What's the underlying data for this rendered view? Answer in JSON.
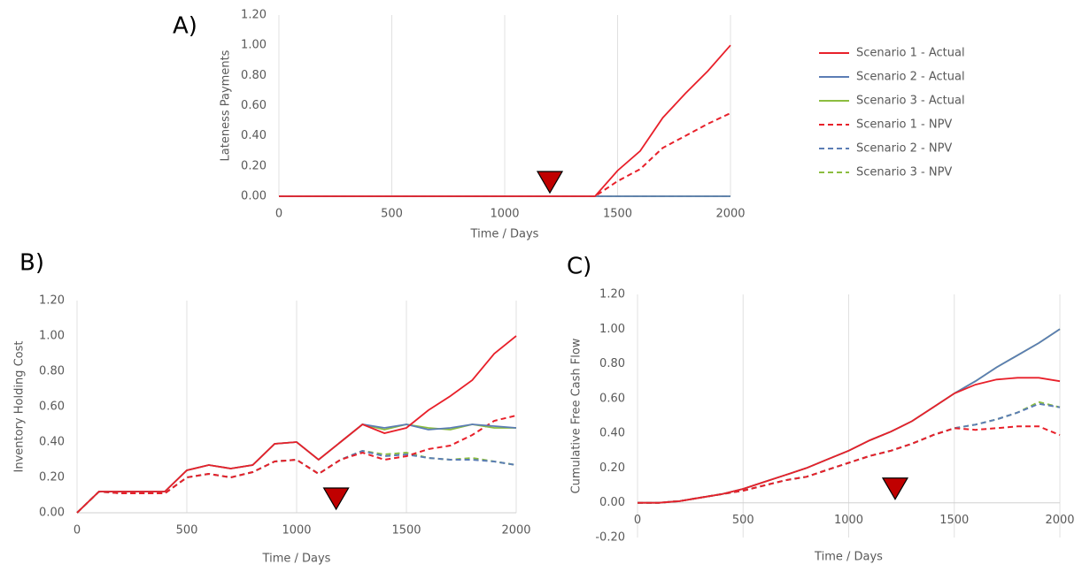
{
  "chart_data": [
    {
      "type": "line",
      "title": "A)",
      "x_label": "Time / Days",
      "y_label": "Lateness Payments",
      "x": [
        0,
        100,
        200,
        300,
        400,
        500,
        600,
        700,
        800,
        900,
        1000,
        1100,
        1200,
        1300,
        1400,
        1500,
        1600,
        1700,
        1800,
        1900,
        2000
      ],
      "xlim": [
        0,
        2000
      ],
      "xticks": [
        0,
        500,
        1000,
        1500,
        2000
      ],
      "ylim": [
        0,
        1.2
      ],
      "yticks": [
        {
          "value": 0,
          "label": "0.00"
        },
        {
          "value": 0.2,
          "label": "0.20"
        },
        {
          "value": 0.4,
          "label": "0.40"
        },
        {
          "value": 0.6,
          "label": "0.60"
        },
        {
          "value": 0.8,
          "label": "0.80"
        },
        {
          "value": 1.0,
          "label": "1.00"
        },
        {
          "value": 1.2,
          "label": "1.20"
        }
      ],
      "grid": "x",
      "legend": "right",
      "marker_x": 1200,
      "marker_color": "#c00000",
      "series": [
        {
          "name": "Scenario 1 - Actual",
          "color": "#e8202a",
          "dash": false,
          "values": [
            0,
            0,
            0,
            0,
            0,
            0,
            0,
            0,
            0,
            0,
            0,
            0,
            0,
            0,
            0,
            0.17,
            0.3,
            0.52,
            0.68,
            0.83,
            1.0
          ]
        },
        {
          "name": "Scenario 2 - Actual",
          "color": "#5b7db5",
          "dash": false,
          "values": [
            0,
            0,
            0,
            0,
            0,
            0,
            0,
            0,
            0,
            0,
            0,
            0,
            0,
            0,
            0,
            0,
            0,
            0,
            0,
            0,
            0
          ]
        },
        {
          "name": "Scenario 3 - Actual",
          "color": "#8cbd3f",
          "dash": false,
          "values": [
            0,
            0,
            0,
            0,
            0,
            0,
            0,
            0,
            0,
            0,
            0,
            0,
            0,
            0,
            0,
            0,
            0,
            0,
            0,
            0,
            0
          ]
        },
        {
          "name": "Scenario 1 - NPV",
          "color": "#e8202a",
          "dash": true,
          "values": [
            0,
            0,
            0,
            0,
            0,
            0,
            0,
            0,
            0,
            0,
            0,
            0,
            0,
            0,
            0,
            0.1,
            0.18,
            0.32,
            0.4,
            0.48,
            0.55
          ]
        },
        {
          "name": "Scenario 2 - NPV",
          "color": "#5b7db5",
          "dash": true,
          "values": [
            0,
            0,
            0,
            0,
            0,
            0,
            0,
            0,
            0,
            0,
            0,
            0,
            0,
            0,
            0,
            0,
            0,
            0,
            0,
            0,
            0
          ]
        },
        {
          "name": "Scenario 3 - NPV",
          "color": "#8cbd3f",
          "dash": true,
          "values": [
            0,
            0,
            0,
            0,
            0,
            0,
            0,
            0,
            0,
            0,
            0,
            0,
            0,
            0,
            0,
            0,
            0,
            0,
            0,
            0,
            0
          ]
        }
      ]
    },
    {
      "type": "line",
      "title": "B)",
      "x_label": "Time / Days",
      "y_label": "Inventory Holding Cost",
      "x": [
        0,
        100,
        200,
        300,
        400,
        500,
        600,
        700,
        800,
        900,
        1000,
        1100,
        1200,
        1300,
        1400,
        1500,
        1600,
        1700,
        1800,
        1900,
        2000
      ],
      "xlim": [
        0,
        2000
      ],
      "xticks": [
        0,
        500,
        1000,
        1500,
        2000
      ],
      "ylim": [
        0,
        1.2
      ],
      "yticks": [
        {
          "value": 0,
          "label": "0.00"
        },
        {
          "value": 0.2,
          "label": "0.20"
        },
        {
          "value": 0.4,
          "label": "0.40"
        },
        {
          "value": 0.6,
          "label": "0.60"
        },
        {
          "value": 0.8,
          "label": "0.80"
        },
        {
          "value": 1.0,
          "label": "1.00"
        },
        {
          "value": 1.2,
          "label": "1.20"
        }
      ],
      "grid": "x",
      "marker_x": 1180,
      "marker_color": "#c00000",
      "series": [
        {
          "color": "#e8202a",
          "dash": false,
          "values": [
            0,
            0.12,
            0.12,
            0.12,
            0.12,
            0.24,
            0.27,
            0.25,
            0.27,
            0.39,
            0.4,
            0.3,
            0.4,
            0.5,
            0.45,
            0.48,
            0.58,
            0.66,
            0.75,
            0.9,
            1.0
          ]
        },
        {
          "color": "#5b7db5",
          "dash": false,
          "values": [
            0,
            0.12,
            0.12,
            0.12,
            0.12,
            0.24,
            0.27,
            0.25,
            0.27,
            0.39,
            0.4,
            0.3,
            0.4,
            0.5,
            0.48,
            0.5,
            0.47,
            0.48,
            0.5,
            0.49,
            0.48
          ]
        },
        {
          "color": "#8cbd3f",
          "dash": false,
          "values": [
            0,
            0.12,
            0.12,
            0.12,
            0.12,
            0.24,
            0.27,
            0.25,
            0.27,
            0.39,
            0.4,
            0.3,
            0.4,
            0.5,
            0.47,
            0.5,
            0.48,
            0.47,
            0.5,
            0.48,
            0.48
          ]
        },
        {
          "color": "#e8202a",
          "dash": true,
          "values": [
            0,
            0.12,
            0.11,
            0.11,
            0.11,
            0.2,
            0.22,
            0.2,
            0.23,
            0.29,
            0.3,
            0.22,
            0.3,
            0.34,
            0.3,
            0.32,
            0.36,
            0.38,
            0.44,
            0.52,
            0.55
          ]
        },
        {
          "color": "#5b7db5",
          "dash": true,
          "values": [
            0,
            0.12,
            0.11,
            0.11,
            0.11,
            0.2,
            0.22,
            0.2,
            0.23,
            0.29,
            0.3,
            0.22,
            0.3,
            0.35,
            0.32,
            0.33,
            0.31,
            0.3,
            0.3,
            0.29,
            0.27
          ]
        },
        {
          "color": "#8cbd3f",
          "dash": true,
          "values": [
            0,
            0.12,
            0.11,
            0.11,
            0.11,
            0.2,
            0.22,
            0.2,
            0.23,
            0.29,
            0.3,
            0.22,
            0.3,
            0.35,
            0.33,
            0.34,
            0.31,
            0.3,
            0.31,
            0.29,
            0.27
          ]
        }
      ]
    },
    {
      "type": "line",
      "title": "C)",
      "x_label": "Time /  Days",
      "y_label": "Cumulative Free Cash Flow",
      "x": [
        0,
        100,
        200,
        300,
        400,
        500,
        600,
        700,
        800,
        900,
        1000,
        1100,
        1200,
        1300,
        1400,
        1500,
        1600,
        1700,
        1800,
        1900,
        2000
      ],
      "xlim": [
        0,
        2000
      ],
      "xticks": [
        0,
        500,
        1000,
        1500,
        2000
      ],
      "ylim": [
        -0.2,
        1.2
      ],
      "yticks": [
        {
          "value": -0.2,
          "label": "-0.20"
        },
        {
          "value": 0,
          "label": "0.00"
        },
        {
          "value": 0.2,
          "label": "0.20"
        },
        {
          "value": 0.4,
          "label": "0.40"
        },
        {
          "value": 0.6,
          "label": "0.60"
        },
        {
          "value": 0.8,
          "label": "0.80"
        },
        {
          "value": 1.0,
          "label": "1.00"
        },
        {
          "value": 1.2,
          "label": "1.20"
        }
      ],
      "grid": "x",
      "marker_x": 1220,
      "marker_color": "#c00000",
      "series": [
        {
          "color": "#e8202a",
          "dash": false,
          "values": [
            0,
            0,
            0.01,
            0.03,
            0.05,
            0.08,
            0.12,
            0.16,
            0.2,
            0.25,
            0.3,
            0.36,
            0.41,
            0.47,
            0.55,
            0.63,
            0.68,
            0.71,
            0.72,
            0.72,
            0.7
          ]
        },
        {
          "color": "#5b7db5",
          "dash": false,
          "values": [
            0,
            0,
            0.01,
            0.03,
            0.05,
            0.08,
            0.12,
            0.16,
            0.2,
            0.25,
            0.3,
            0.36,
            0.41,
            0.47,
            0.55,
            0.63,
            0.7,
            0.78,
            0.85,
            0.92,
            1.0
          ]
        },
        {
          "color": "#8cbd3f",
          "dash": false,
          "values": [
            0,
            0,
            0.01,
            0.03,
            0.05,
            0.08,
            0.12,
            0.16,
            0.2,
            0.25,
            0.3,
            0.36,
            0.41,
            0.47,
            0.55,
            0.63,
            0.7,
            0.78,
            0.85,
            0.92,
            1.0
          ]
        },
        {
          "color": "#e8202a",
          "dash": true,
          "values": [
            0,
            0,
            0.01,
            0.03,
            0.05,
            0.07,
            0.1,
            0.13,
            0.15,
            0.19,
            0.23,
            0.27,
            0.3,
            0.34,
            0.39,
            0.43,
            0.42,
            0.43,
            0.44,
            0.44,
            0.39
          ]
        },
        {
          "color": "#5b7db5",
          "dash": true,
          "values": [
            0,
            0,
            0.01,
            0.03,
            0.05,
            0.07,
            0.1,
            0.13,
            0.15,
            0.19,
            0.23,
            0.27,
            0.3,
            0.34,
            0.39,
            0.43,
            0.45,
            0.48,
            0.52,
            0.57,
            0.55
          ]
        },
        {
          "color": "#8cbd3f",
          "dash": true,
          "values": [
            0,
            0,
            0.01,
            0.03,
            0.05,
            0.07,
            0.1,
            0.13,
            0.15,
            0.19,
            0.23,
            0.27,
            0.3,
            0.34,
            0.39,
            0.43,
            0.45,
            0.48,
            0.52,
            0.58,
            0.55
          ]
        }
      ]
    }
  ]
}
